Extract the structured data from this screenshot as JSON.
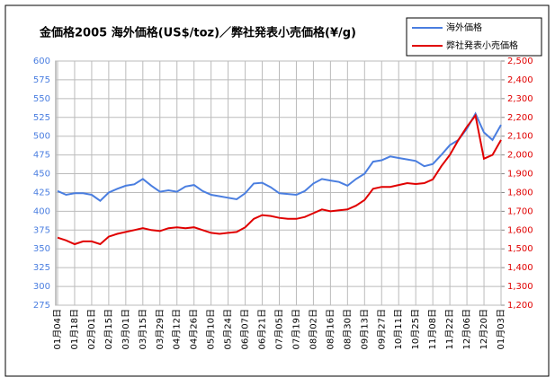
{
  "chart_data": {
    "type": "line",
    "title": "金価格2005 海外価格(US$/toz)／弊社発表小売価格(¥/g)",
    "categories": [
      "01月04日",
      null,
      "01月18日",
      null,
      "02月01日",
      null,
      "02月15日",
      null,
      "03月01日",
      null,
      "03月15日",
      null,
      "03月29日",
      null,
      "04月12日",
      null,
      "04月26日",
      null,
      "05月10日",
      null,
      "05月24日",
      null,
      "06月07日",
      null,
      "06月21日",
      null,
      "07月05日",
      null,
      "07月19日",
      null,
      "08月02日",
      null,
      "08月16日",
      null,
      "08月30日",
      null,
      "09月13日",
      null,
      "09月27日",
      null,
      "10月11日",
      null,
      "10月25日",
      null,
      "11月08日",
      null,
      "11月22日",
      null,
      "12月06日",
      null,
      "12月20日",
      null,
      "01月03日"
    ],
    "series": [
      {
        "name": "海外価格",
        "color": "#4a7ee0",
        "axis": "y",
        "values": [
          427,
          422,
          424,
          424,
          422,
          414,
          425,
          430,
          434,
          436,
          443,
          434,
          426,
          428,
          426,
          433,
          435,
          427,
          422,
          420,
          418,
          416,
          424,
          437,
          438,
          432,
          424,
          423,
          422,
          427,
          437,
          443,
          441,
          439,
          434,
          443,
          450,
          466,
          468,
          473,
          471,
          469,
          467,
          460,
          463,
          475,
          488,
          495,
          510,
          530,
          505,
          495,
          515
        ]
      },
      {
        "name": "弊社発表小売価格",
        "color": "#e00000",
        "axis": "y2",
        "values": [
          1560,
          1545,
          1525,
          1540,
          1540,
          1525,
          1565,
          1580,
          1590,
          1600,
          1610,
          1600,
          1595,
          1610,
          1615,
          1610,
          1615,
          1600,
          1585,
          1580,
          1585,
          1590,
          1615,
          1660,
          1680,
          1675,
          1665,
          1660,
          1660,
          1670,
          1690,
          1710,
          1700,
          1705,
          1710,
          1730,
          1760,
          1820,
          1830,
          1830,
          1840,
          1850,
          1845,
          1850,
          1870,
          1940,
          2000,
          2080,
          2150,
          2210,
          1980,
          2000,
          2080
        ]
      }
    ],
    "ylim": [
      275,
      600
    ],
    "yticks": [
      275,
      300,
      325,
      350,
      375,
      400,
      425,
      450,
      475,
      500,
      525,
      550,
      575,
      600
    ],
    "y2lim": [
      1200,
      2500
    ],
    "y2ticks": [
      {
        "value": 1200,
        "label": "1,200"
      },
      {
        "value": 1300,
        "label": "1,300"
      },
      {
        "value": 1400,
        "label": "1,400"
      },
      {
        "value": 1500,
        "label": "1,500"
      },
      {
        "value": 1600,
        "label": "1,600"
      },
      {
        "value": 1700,
        "label": "1,700"
      },
      {
        "value": 1800,
        "label": "1,800"
      },
      {
        "value": 1900,
        "label": "1,900"
      },
      {
        "value": 2000,
        "label": "2,000"
      },
      {
        "value": 2100,
        "label": "2,100"
      },
      {
        "value": 2200,
        "label": "2,200"
      },
      {
        "value": 2300,
        "label": "2,300"
      },
      {
        "value": 2400,
        "label": "2,400"
      },
      {
        "value": 2500,
        "label": "2,500"
      }
    ],
    "grid": true,
    "legend": "top-right"
  }
}
